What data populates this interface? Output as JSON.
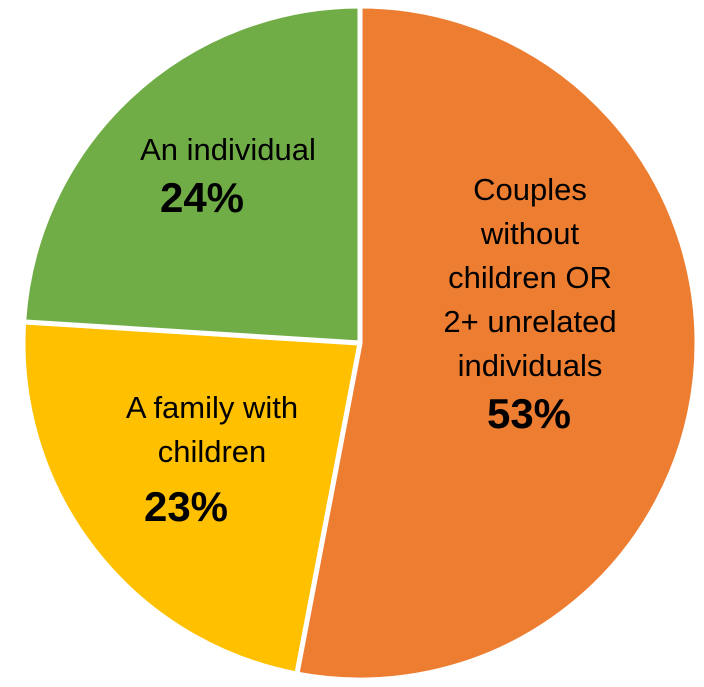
{
  "chart_data": {
    "type": "pie",
    "slices": [
      {
        "label_lines": [
          "Couples",
          "without",
          "children OR",
          "2+ unrelated",
          "individuals"
        ],
        "value": 53,
        "value_label": "53%",
        "color": "#ED7D31"
      },
      {
        "label_lines": [
          "A family with",
          "children"
        ],
        "value": 23,
        "value_label": "23%",
        "color": "#FFC000"
      },
      {
        "label_lines": [
          "An individual"
        ],
        "value": 24,
        "value_label": "24%",
        "color": "#70AD47"
      }
    ],
    "start_angle_deg": 0,
    "direction": "clockwise",
    "slice_border_color": "#FFFFFF",
    "legend": "none"
  }
}
